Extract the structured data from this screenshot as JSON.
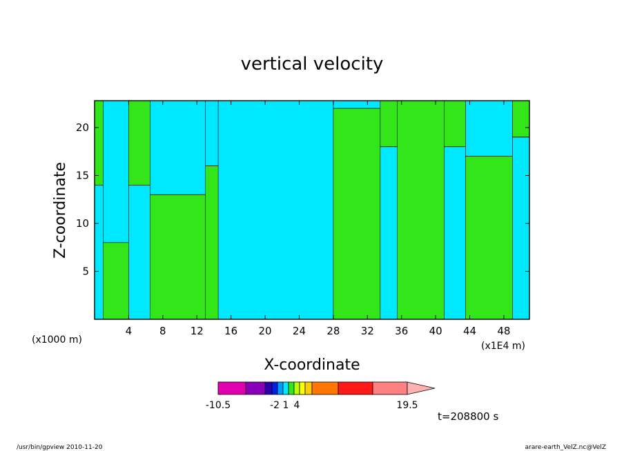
{
  "chart_data": {
    "type": "heatmap",
    "title": "vertical velocity",
    "xlabel": "X-coordinate",
    "ylabel": "Z-coordinate",
    "x_unit_left": "(x1000 m)",
    "x_unit_right": "(x1E4 m)",
    "xlim": [
      0,
      51
    ],
    "ylim": [
      0,
      22.8
    ],
    "x_ticks": [
      4,
      8,
      12,
      16,
      20,
      24,
      28,
      32,
      36,
      40,
      44,
      48
    ],
    "y_ticks": [
      5,
      10,
      15,
      20
    ],
    "colorbar": {
      "colors": [
        "#e000b0",
        "#8a00b8",
        "#2a00b0",
        "#0022e6",
        "#0099ff",
        "#00e8ff",
        "#33e61a",
        "#b8ff00",
        "#ffff00",
        "#ffcc00",
        "#ff7700",
        "#ff1a1a",
        "#ff8080",
        "#ffb0b0"
      ],
      "labels": [
        "-10.5",
        "-2",
        "1",
        "4",
        "19.5"
      ],
      "label_values": [
        -10.5,
        -2,
        1,
        4,
        19.5
      ]
    },
    "bands": [
      {
        "x0": 0.0,
        "x1": 1.0,
        "z": 14.0,
        "bottom": "cyan"
      },
      {
        "x0": 1.0,
        "x1": 4.0,
        "z": 8.0,
        "bottom": "green"
      },
      {
        "x0": 4.0,
        "x1": 6.5,
        "z": 14.0,
        "bottom": "cyan"
      },
      {
        "x0": 6.5,
        "x1": 13.0,
        "z": 13.0,
        "bottom": "green"
      },
      {
        "x0": 13.0,
        "x1": 14.5,
        "z": 16.0,
        "bottom": "green"
      },
      {
        "x0": 14.5,
        "x1": 28.0,
        "z": 23.0,
        "bottom": "cyan"
      },
      {
        "x0": 28.0,
        "x1": 33.5,
        "z": 22.0,
        "bottom": "green"
      },
      {
        "x0": 33.5,
        "x1": 35.5,
        "z": 18.0,
        "bottom": "cyan"
      },
      {
        "x0": 35.5,
        "x1": 41.0,
        "z": 23.0,
        "bottom": "green"
      },
      {
        "x0": 41.0,
        "x1": 43.5,
        "z": 18.0,
        "bottom": "cyan"
      },
      {
        "x0": 43.5,
        "x1": 49.0,
        "z": 17.0,
        "bottom": "green"
      },
      {
        "x0": 49.0,
        "x1": 51.0,
        "z": 19.0,
        "bottom": "cyan"
      }
    ],
    "fill_colors": {
      "cyan": "#00e8ff",
      "green": "#33e61a"
    },
    "time_label": "t=208800 s"
  },
  "footer": {
    "left": "/usr/bin/gpview   2010-11-20",
    "right": "arare-earth_VelZ.nc@VelZ"
  }
}
